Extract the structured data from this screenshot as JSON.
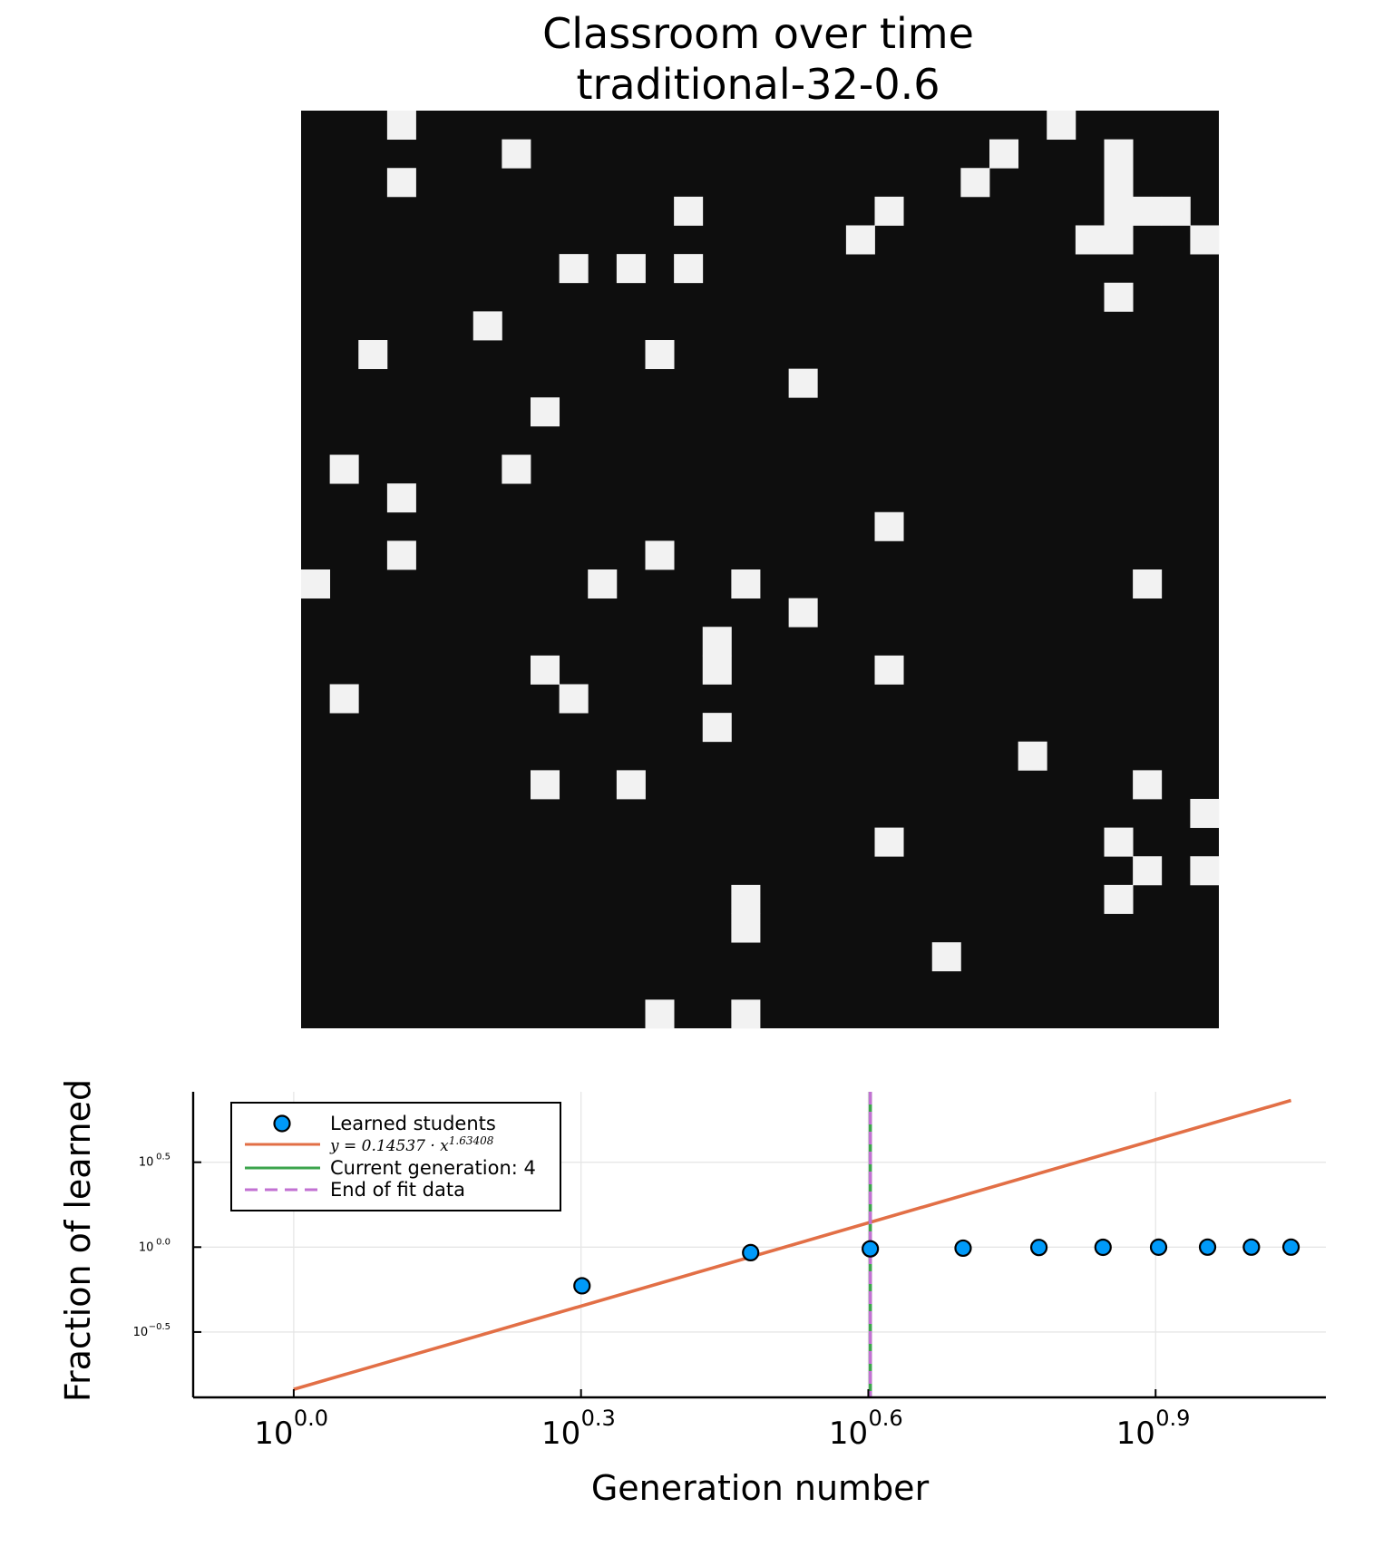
{
  "chart_data": [
    {
      "type": "heatmap",
      "title": "Classroom over time",
      "subtitle": "traditional-32-0.6",
      "grid_size": 32,
      "colors": {
        "off": "#0e0e0e",
        "on": "#f2f2f2"
      },
      "learned_cells": [
        [
          0,
          3
        ],
        [
          0,
          26
        ],
        [
          1,
          7
        ],
        [
          1,
          24
        ],
        [
          1,
          28
        ],
        [
          2,
          3
        ],
        [
          2,
          23
        ],
        [
          2,
          28
        ],
        [
          3,
          13
        ],
        [
          3,
          20
        ],
        [
          3,
          28
        ],
        [
          3,
          29
        ],
        [
          3,
          30
        ],
        [
          4,
          19
        ],
        [
          4,
          27
        ],
        [
          4,
          28
        ],
        [
          4,
          31
        ],
        [
          5,
          9
        ],
        [
          5,
          11
        ],
        [
          5,
          13
        ],
        [
          6,
          28
        ],
        [
          7,
          6
        ],
        [
          8,
          2
        ],
        [
          8,
          12
        ],
        [
          9,
          17
        ],
        [
          10,
          8
        ],
        [
          12,
          1
        ],
        [
          12,
          7
        ],
        [
          13,
          3
        ],
        [
          14,
          20
        ],
        [
          15,
          3
        ],
        [
          15,
          12
        ],
        [
          16,
          0
        ],
        [
          16,
          10
        ],
        [
          16,
          15
        ],
        [
          16,
          29
        ],
        [
          17,
          17
        ],
        [
          18,
          14
        ],
        [
          19,
          8
        ],
        [
          19,
          14
        ],
        [
          19,
          20
        ],
        [
          20,
          1
        ],
        [
          20,
          9
        ],
        [
          21,
          14
        ],
        [
          22,
          25
        ],
        [
          23,
          8
        ],
        [
          23,
          11
        ],
        [
          23,
          29
        ],
        [
          24,
          31
        ],
        [
          25,
          20
        ],
        [
          25,
          28
        ],
        [
          26,
          29
        ],
        [
          26,
          31
        ],
        [
          27,
          15
        ],
        [
          27,
          28
        ],
        [
          28,
          15
        ],
        [
          29,
          22
        ],
        [
          31,
          12
        ],
        [
          31,
          15
        ]
      ]
    },
    {
      "type": "scatter",
      "xlabel": "Generation number",
      "ylabel": "Fraction of learned",
      "x_scale": "log10",
      "y_scale": "log10",
      "x_range_log10": [
        -0.105,
        1.0778
      ],
      "y_range_log10": [
        -0.885,
        0.915
      ],
      "x_ticks": [
        {
          "base": "10",
          "exp": "0.0",
          "log": 0.0
        },
        {
          "base": "10",
          "exp": "0.3",
          "log": 0.3
        },
        {
          "base": "10",
          "exp": "0.6",
          "log": 0.6
        },
        {
          "base": "10",
          "exp": "0.9",
          "log": 0.9
        }
      ],
      "y_ticks": [
        {
          "base": "10",
          "exp": "0.5",
          "log": 0.5
        },
        {
          "base": "10",
          "exp": "0.0",
          "log": 0.0
        },
        {
          "base": "10",
          "exp": "−0.5",
          "log": -0.5
        }
      ],
      "grid": true,
      "legend_position": "top-left",
      "series": [
        {
          "name": "Learned students",
          "kind": "scatter",
          "color": "#009af9",
          "x": [
            2,
            3,
            4,
            5,
            6,
            7,
            8,
            9,
            10,
            11
          ],
          "y": [
            0.5918,
            0.9277,
            0.9773,
            0.9863,
            0.9956,
            0.9981,
            0.999,
            1.0,
            1.0,
            1.0
          ]
        },
        {
          "name": "y = 0.14537 · x^1.63408",
          "kind": "line",
          "color": "#e26f46",
          "fit": {
            "coef": 0.14537,
            "exponent": 1.63408
          },
          "x_span": [
            1,
            11
          ]
        },
        {
          "name": "Current generation: 4",
          "kind": "vline",
          "color": "#3da44d",
          "x": 4
        },
        {
          "name": "End of fit data",
          "kind": "vline-dashed",
          "color": "#c271d2",
          "x": 4
        }
      ],
      "legend_labels": {
        "learned": "Learned students",
        "fit_prefix": "y = 0.14537 · x",
        "fit_exp": "1.63408",
        "current": "Current generation: 4",
        "end_fit": "End of fit data"
      }
    }
  ]
}
